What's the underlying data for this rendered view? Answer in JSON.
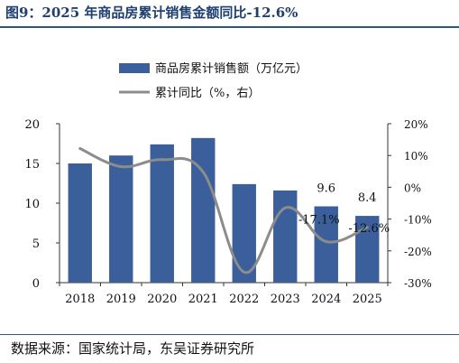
{
  "figure_title": "图9：2025 年商品房累计销售金额同比-12.6%",
  "source": "数据来源：国家统计局，东吴证券研究所",
  "colors": {
    "bar": "#3a5f9a",
    "line": "#8c8c8c",
    "title": "#1f3f70",
    "rule": "#2e5586"
  },
  "chart_data": {
    "type": "bar+line",
    "categories": [
      "2018",
      "2019",
      "2020",
      "2021",
      "2022",
      "2023",
      "2024",
      "2025"
    ],
    "series": [
      {
        "name": "商品房累计销售额（万亿元）",
        "type": "bar",
        "axis": "left",
        "values": [
          15.0,
          16.0,
          17.4,
          18.2,
          12.4,
          11.6,
          9.6,
          8.4
        ]
      },
      {
        "name": "累计同比（%，右）",
        "type": "line",
        "axis": "right",
        "values": [
          12.2,
          6.5,
          8.7,
          4.8,
          -26.7,
          -6.5,
          -17.1,
          -12.6
        ]
      }
    ],
    "left_axis": {
      "min": 0,
      "max": 20,
      "ticks": [
        "0",
        "5",
        "10",
        "15",
        "20"
      ]
    },
    "right_axis": {
      "min": -30,
      "max": 20,
      "ticks": [
        "-30%",
        "-20%",
        "-10%",
        "0%",
        "10%",
        "20%"
      ]
    },
    "data_labels": [
      {
        "series": 0,
        "index": 6,
        "text": "9.6"
      },
      {
        "series": 0,
        "index": 7,
        "text": "8.4"
      },
      {
        "series": 1,
        "index": 6,
        "text": "-17.1%"
      },
      {
        "series": 1,
        "index": 7,
        "text": "-12.6%"
      }
    ],
    "legend": "top",
    "grid": false
  }
}
